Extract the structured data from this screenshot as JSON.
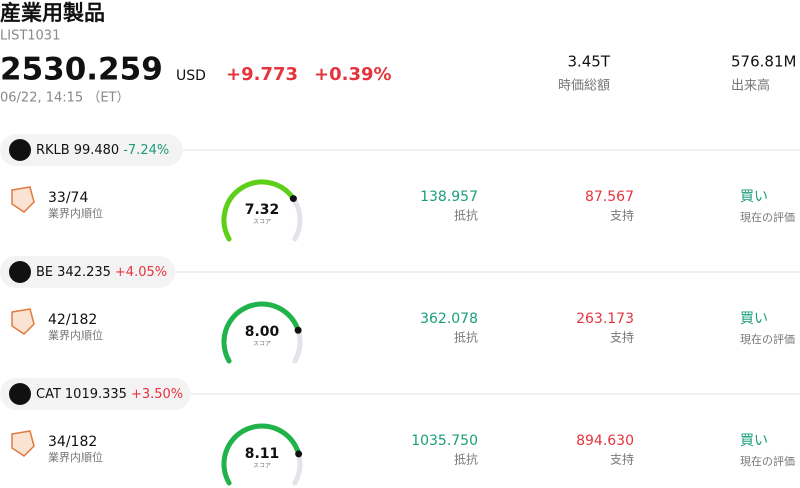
{
  "header": {
    "title": "産業用製品",
    "code": "LIST1031",
    "price": "2530.259",
    "currency": "USD",
    "change": "+9.773",
    "change_pct": "+0.39%",
    "time": "06/22, 14:15 （ET）",
    "stats": [
      {
        "value": "3.45T",
        "label": "時価総額"
      },
      {
        "value": "576.81M",
        "label": "出来高"
      }
    ]
  },
  "stocks": [
    {
      "ticker": "RKLB",
      "price": "99.480",
      "change": "-7.24%",
      "rank": "33/74",
      "rank_label": "業界内順位",
      "score": "7.32",
      "score_label": "スコア",
      "gauge_color": "#5ccf17",
      "resistance": "138.957",
      "resistance_label": "抵抗",
      "support": "87.567",
      "support_label": "支持",
      "rating": "買い",
      "rating_label": "現在の評価"
    },
    {
      "ticker": "BE",
      "price": "342.235",
      "change": "+4.05%",
      "rank": "42/182",
      "rank_label": "業界内順位",
      "score": "8.00",
      "score_label": "スコア",
      "gauge_color": "#20b34a",
      "resistance": "362.078",
      "resistance_label": "抵抗",
      "support": "263.173",
      "support_label": "支持",
      "rating": "買い",
      "rating_label": "現在の評価"
    },
    {
      "ticker": "CAT",
      "price": "1019.335",
      "change": "+3.50%",
      "rank": "34/182",
      "rank_label": "業界内順位",
      "score": "8.11",
      "score_label": "スコア",
      "gauge_color": "#20b34a",
      "resistance": "1035.750",
      "resistance_label": "抵抗",
      "support": "894.630",
      "support_label": "支持",
      "rating": "買い",
      "rating_label": "現在の評価"
    }
  ]
}
